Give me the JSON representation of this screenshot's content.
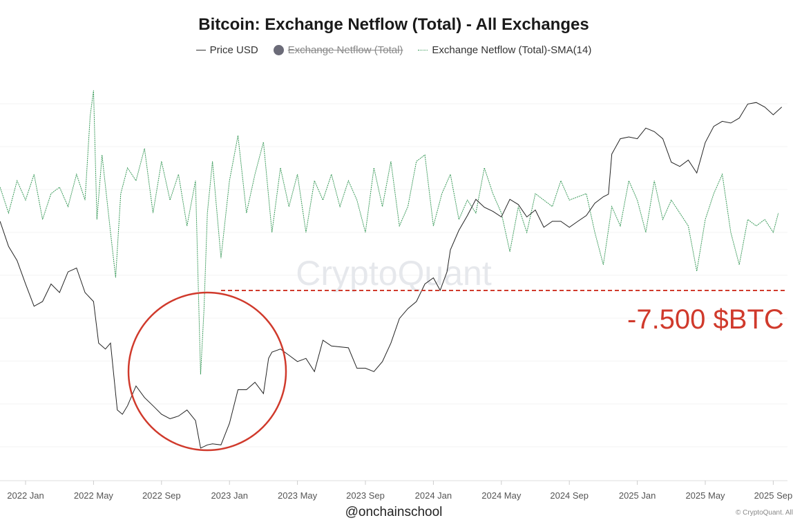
{
  "chart_data": {
    "type": "line",
    "title": "Bitcoin: Exchange Netflow (Total) - All Exchanges",
    "legend": [
      {
        "label": "Price USD",
        "color": "#222222",
        "style": "solid",
        "hidden": false
      },
      {
        "label": "Exchange Netflow (Total)",
        "color": "#6b6b78",
        "style": "dot",
        "hidden": true
      },
      {
        "label": "Exchange Netflow (Total)-SMA(14)",
        "color": "#3a9a5a",
        "style": "dotted",
        "hidden": false
      }
    ],
    "x_note": "months since 2022 Jan",
    "x_ticks": [
      "2022 Jan",
      "2022 May",
      "2022 Sep",
      "2023 Jan",
      "2023 May",
      "2023 Sep",
      "2024 Jan",
      "2024 May",
      "2024 Sep",
      "2025 Jan",
      "2025 May",
      "2025 Sep"
    ],
    "price_scale": "log",
    "series": [
      {
        "name": "Price USD",
        "points": [
          [
            -1.5,
            60000
          ],
          [
            -1,
            52000
          ],
          [
            -0.5,
            48000
          ],
          [
            0,
            42000
          ],
          [
            0.5,
            37000
          ],
          [
            1,
            38000
          ],
          [
            1.5,
            42000
          ],
          [
            2,
            40000
          ],
          [
            2.5,
            45000
          ],
          [
            3,
            46000
          ],
          [
            3.5,
            40000
          ],
          [
            4,
            38000
          ],
          [
            4.3,
            30000
          ],
          [
            4.7,
            29000
          ],
          [
            5,
            30000
          ],
          [
            5.4,
            20500
          ],
          [
            5.7,
            20000
          ],
          [
            6,
            21000
          ],
          [
            6.5,
            23500
          ],
          [
            7,
            22000
          ],
          [
            7.5,
            21000
          ],
          [
            8,
            20000
          ],
          [
            8.5,
            19500
          ],
          [
            9,
            19800
          ],
          [
            9.5,
            20500
          ],
          [
            10,
            19300
          ],
          [
            10.3,
            16500
          ],
          [
            10.7,
            16800
          ],
          [
            11,
            16900
          ],
          [
            11.5,
            16800
          ],
          [
            12,
            19000
          ],
          [
            12.5,
            23000
          ],
          [
            13,
            23000
          ],
          [
            13.5,
            24000
          ],
          [
            14,
            22500
          ],
          [
            14.3,
            27500
          ],
          [
            14.5,
            28500
          ],
          [
            15,
            29000
          ],
          [
            15.5,
            28000
          ],
          [
            16,
            27000
          ],
          [
            16.5,
            27500
          ],
          [
            17,
            25500
          ],
          [
            17.5,
            30500
          ],
          [
            18,
            29500
          ],
          [
            19,
            29200
          ],
          [
            19.5,
            26000
          ],
          [
            20,
            26000
          ],
          [
            20.5,
            25500
          ],
          [
            21,
            27000
          ],
          [
            21.5,
            30000
          ],
          [
            22,
            34500
          ],
          [
            22.5,
            36500
          ],
          [
            23,
            38000
          ],
          [
            23.5,
            42000
          ],
          [
            24,
            43500
          ],
          [
            24.4,
            40500
          ],
          [
            24.8,
            45000
          ],
          [
            25,
            51000
          ],
          [
            25.5,
            57000
          ],
          [
            26,
            62000
          ],
          [
            26.5,
            68000
          ],
          [
            27,
            65000
          ],
          [
            27.5,
            63500
          ],
          [
            28,
            61500
          ],
          [
            28.5,
            68000
          ],
          [
            29,
            66000
          ],
          [
            29.5,
            61500
          ],
          [
            30,
            64000
          ],
          [
            30.5,
            58000
          ],
          [
            31,
            60000
          ],
          [
            31.5,
            60000
          ],
          [
            32,
            58000
          ],
          [
            32.5,
            60000
          ],
          [
            33,
            62000
          ],
          [
            33.5,
            66500
          ],
          [
            34,
            69000
          ],
          [
            34.3,
            70000
          ],
          [
            34.5,
            88000
          ],
          [
            35,
            96000
          ],
          [
            35.5,
            97000
          ],
          [
            36,
            96000
          ],
          [
            36.5,
            102000
          ],
          [
            37,
            100000
          ],
          [
            37.5,
            96000
          ],
          [
            38,
            84000
          ],
          [
            38.5,
            82000
          ],
          [
            39,
            85000
          ],
          [
            39.5,
            79000
          ],
          [
            40,
            94000
          ],
          [
            40.5,
            103000
          ],
          [
            41,
            106000
          ],
          [
            41.5,
            105000
          ],
          [
            42,
            108000
          ],
          [
            42.5,
            117000
          ],
          [
            43,
            118000
          ],
          [
            43.5,
            115000
          ],
          [
            44,
            110000
          ],
          [
            44.5,
            115000
          ]
        ]
      },
      {
        "name": "Exchange Netflow (Total)-SMA(14)",
        "points": [
          [
            -1.5,
            500
          ],
          [
            -1,
            -1500
          ],
          [
            -0.5,
            1000
          ],
          [
            0,
            -500
          ],
          [
            0.5,
            1500
          ],
          [
            1,
            -2000
          ],
          [
            1.5,
            0
          ],
          [
            2,
            500
          ],
          [
            2.5,
            -1000
          ],
          [
            3,
            1500
          ],
          [
            3.5,
            -500
          ],
          [
            3.8,
            6000
          ],
          [
            4,
            8000
          ],
          [
            4.2,
            -2000
          ],
          [
            4.5,
            3000
          ],
          [
            5,
            -3000
          ],
          [
            5.3,
            -6500
          ],
          [
            5.6,
            0
          ],
          [
            6,
            2000
          ],
          [
            6.5,
            1000
          ],
          [
            7,
            3500
          ],
          [
            7.5,
            -1500
          ],
          [
            8,
            2500
          ],
          [
            8.5,
            -500
          ],
          [
            9,
            1500
          ],
          [
            9.5,
            -2500
          ],
          [
            10,
            1000
          ],
          [
            10.3,
            -14000
          ],
          [
            10.5,
            -9000
          ],
          [
            10.7,
            -1500
          ],
          [
            11,
            2500
          ],
          [
            11.5,
            -5000
          ],
          [
            12,
            1000
          ],
          [
            12.5,
            4500
          ],
          [
            13,
            -1500
          ],
          [
            13.5,
            1500
          ],
          [
            14,
            4000
          ],
          [
            14.5,
            -3000
          ],
          [
            15,
            2000
          ],
          [
            15.5,
            -1000
          ],
          [
            16,
            1500
          ],
          [
            16.5,
            -3000
          ],
          [
            17,
            1000
          ],
          [
            17.5,
            -500
          ],
          [
            18,
            1500
          ],
          [
            18.5,
            -1000
          ],
          [
            19,
            1000
          ],
          [
            19.5,
            -500
          ],
          [
            20,
            -3000
          ],
          [
            20.5,
            2000
          ],
          [
            21,
            -1000
          ],
          [
            21.5,
            2500
          ],
          [
            22,
            -2500
          ],
          [
            22.5,
            -1000
          ],
          [
            23,
            2500
          ],
          [
            23.5,
            3000
          ],
          [
            24,
            -2500
          ],
          [
            24.5,
            0
          ],
          [
            25,
            1500
          ],
          [
            25.5,
            -2000
          ],
          [
            26,
            -500
          ],
          [
            26.5,
            -1500
          ],
          [
            27,
            2000
          ],
          [
            27.5,
            0
          ],
          [
            28,
            -1500
          ],
          [
            28.5,
            -4500
          ],
          [
            29,
            -1000
          ],
          [
            29.5,
            -3000
          ],
          [
            30,
            0
          ],
          [
            30.5,
            -500
          ],
          [
            31,
            -1000
          ],
          [
            31.5,
            1000
          ],
          [
            32,
            -500
          ],
          [
            33,
            0
          ],
          [
            33.5,
            -3000
          ],
          [
            34,
            -5500
          ],
          [
            34.5,
            -1000
          ],
          [
            35,
            -2500
          ],
          [
            35.5,
            1000
          ],
          [
            36,
            -500
          ],
          [
            36.5,
            -3000
          ],
          [
            37,
            1000
          ],
          [
            37.5,
            -2000
          ],
          [
            38,
            -500
          ],
          [
            38.5,
            -1500
          ],
          [
            39,
            -2500
          ],
          [
            39.5,
            -6000
          ],
          [
            40,
            -2000
          ],
          [
            40.5,
            0
          ],
          [
            41,
            1500
          ],
          [
            41.5,
            -3000
          ],
          [
            42,
            -5500
          ],
          [
            42.5,
            -2000
          ],
          [
            43,
            -2500
          ],
          [
            43.5,
            -2000
          ],
          [
            44,
            -3000
          ],
          [
            44.3,
            -1500
          ]
        ]
      }
    ],
    "annotations": {
      "level_value": -7500,
      "level_label": "-7.500 $BTC",
      "circle_around": "2022 Nov netflow spike"
    },
    "watermark": "CryptoQuant",
    "grid": true
  },
  "footer": {
    "handle": "@onchainschool",
    "copyright": "© CryptoQuant. All"
  }
}
